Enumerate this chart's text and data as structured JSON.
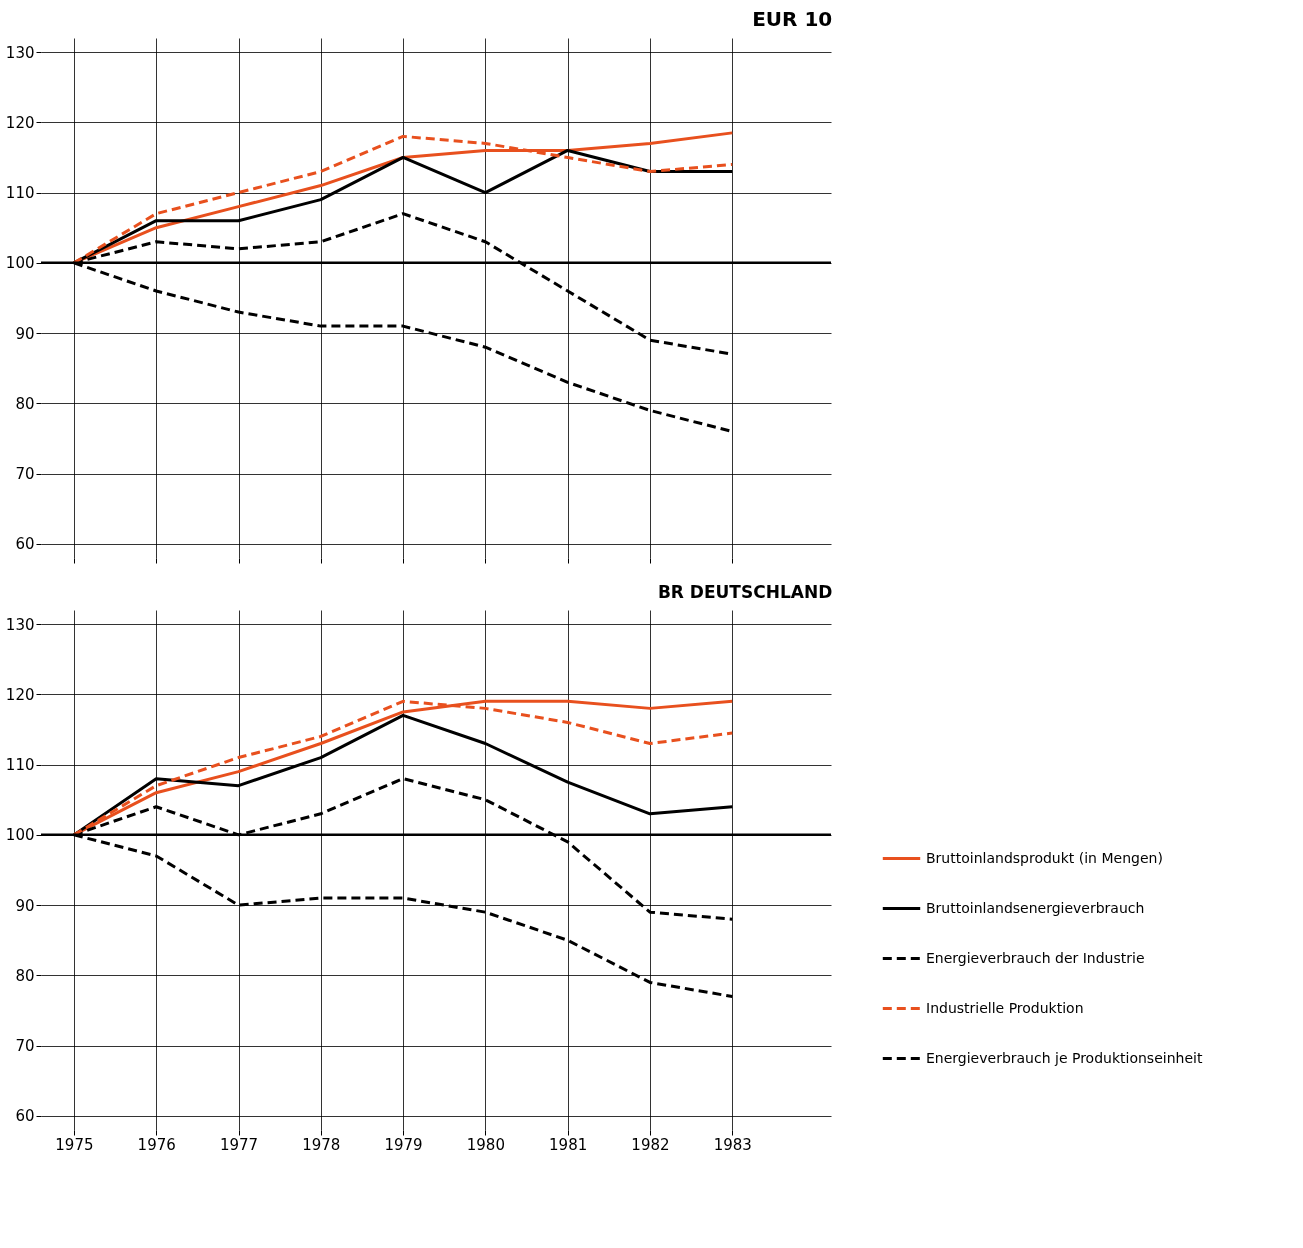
{
  "chart_data": [
    {
      "type": "line",
      "title": "EUR 10",
      "x": [
        1975,
        1976,
        1977,
        1978,
        1979,
        1980,
        1981,
        1982,
        1983
      ],
      "xlim": [
        1974.6,
        1984.2
      ],
      "xticks": [
        1975,
        1976,
        1977,
        1978,
        1979,
        1980,
        1981,
        1982,
        1983
      ],
      "ylim": [
        58,
        132
      ],
      "yticks": [
        60,
        70,
        80,
        90,
        100,
        110,
        120,
        130
      ],
      "grid": true,
      "tick_labels": "y",
      "marker": "none",
      "legend": "bottom right",
      "ref_lines": [
        {
          "axis": "y",
          "value": 100,
          "color": "#000000"
        }
      ],
      "series": [
        {
          "name": "Bruttoinlandsprodukt (in Mengen)",
          "color": "#e8501e",
          "line_style": "solid",
          "values": [
            100,
            105,
            108,
            111,
            115,
            116,
            116,
            117,
            118.5
          ]
        },
        {
          "name": "Bruttoinlandsenergieverbrauch",
          "color": "#000000",
          "line_style": "solid",
          "values": [
            100,
            106,
            106,
            109,
            115,
            110,
            116,
            113,
            113
          ]
        },
        {
          "name": "Energieverbrauch der Industrie",
          "color": "#000000",
          "line_style": "dashed",
          "values": [
            100,
            103,
            102,
            103,
            107,
            103,
            96,
            89,
            87
          ]
        },
        {
          "name": "Industrielle Produktion",
          "color": "#e8501e",
          "line_style": "dashed",
          "values": [
            100,
            107,
            110,
            113,
            118,
            117,
            115,
            113,
            114
          ]
        },
        {
          "name": "Energieverbrauch je Produktionseinheit",
          "color": "#000000",
          "line_style": "dashed",
          "values": [
            100,
            96,
            93,
            91,
            91,
            88,
            83,
            79,
            76
          ]
        }
      ]
    },
    {
      "type": "line",
      "title": "BR DEUTSCHLAND",
      "x": [
        1975,
        1976,
        1977,
        1978,
        1979,
        1980,
        1981,
        1982,
        1983
      ],
      "xlim": [
        1974.6,
        1984.2
      ],
      "xticks": [
        1975,
        1976,
        1977,
        1978,
        1979,
        1980,
        1981,
        1982,
        1983
      ],
      "ylim": [
        58,
        132
      ],
      "yticks": [
        60,
        70,
        80,
        90,
        100,
        110,
        120,
        130
      ],
      "grid": true,
      "legend": "bottom right",
      "marker": "none",
      "ref_lines": [
        {
          "axis": "y",
          "value": 100,
          "color": "#000000"
        }
      ],
      "series": [
        {
          "name": "Bruttoinlandsprodukt (in Mengen)",
          "color": "#e8501e",
          "line_style": "solid",
          "values": [
            100,
            106,
            109,
            113,
            117.5,
            119,
            119,
            118,
            119
          ]
        },
        {
          "name": "Bruttoinlandsenergieverbrauch",
          "color": "#000000",
          "line_style": "solid",
          "values": [
            100,
            108,
            107,
            111,
            117,
            113,
            107.5,
            103,
            104
          ]
        },
        {
          "name": "Energieverbrauch der Industrie",
          "color": "#000000",
          "line_style": "dashed",
          "values": [
            100,
            104,
            100,
            103,
            108,
            105,
            99,
            89,
            88
          ]
        },
        {
          "name": "Industrielle Produktion",
          "color": "#e8501e",
          "line_style": "dashed",
          "values": [
            100,
            107,
            111,
            114,
            119,
            118,
            116,
            113,
            114.5
          ]
        },
        {
          "name": "Energieverbrauch je Produktionseinheit",
          "color": "#000000",
          "line_style": "dashed",
          "values": [
            100,
            97,
            90,
            91,
            91,
            89,
            85,
            79,
            77
          ]
        }
      ]
    }
  ]
}
